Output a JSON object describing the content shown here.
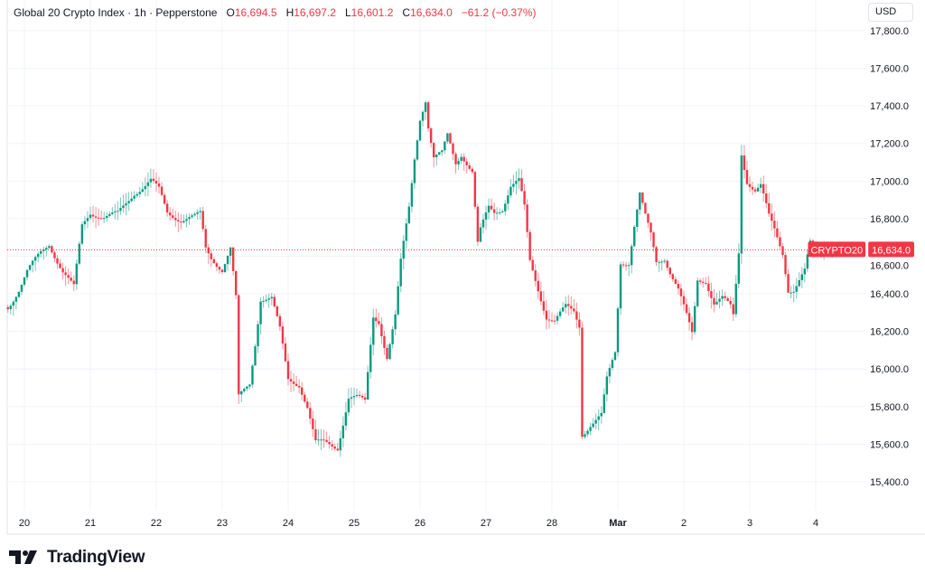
{
  "header": {
    "symbol_title": "Global 20 Crypto Index · 1h · Pepperstone",
    "open_label": "O",
    "open": "16,694.5",
    "high_label": "H",
    "high": "16,697.2",
    "low_label": "L",
    "low": "16,601.2",
    "close_label": "C",
    "close": "16,634.0",
    "change": "−61.2 (−0.37%)"
  },
  "currency_button": "USD",
  "price_tag": {
    "symbol": "CRYPTO20",
    "value": "16,634.0"
  },
  "logo_text": "TradingView",
  "colors": {
    "up": "#089981",
    "down": "#f23645",
    "grid": "#f0f3fa",
    "last_price": "#f23645"
  },
  "chart_data": {
    "type": "candlestick",
    "title": "Global 20 Crypto Index · 1h · Pepperstone",
    "interval": "1h",
    "ylim": [
      15300,
      17850
    ],
    "last_price": 16634.0,
    "grid": true,
    "y_ticks": [
      "17,800.0",
      "17,600.0",
      "17,400.0",
      "17,200.0",
      "17,000.0",
      "16,800.0",
      "16,600.0",
      "16,400.0",
      "16,200.0",
      "16,000.0",
      "15,800.0",
      "15,600.0",
      "15,400.0"
    ],
    "x_ticks": [
      "20",
      "21",
      "22",
      "23",
      "24",
      "25",
      "26",
      "27",
      "28",
      "Mar",
      "2",
      "3",
      "4"
    ],
    "approx_closes": [
      [
        "02-19 18:00",
        16328
      ],
      [
        "02-19 22:00",
        16424
      ],
      [
        "02-20 01:00",
        16520
      ],
      [
        "02-20 06:00",
        16617
      ],
      [
        "02-20 09:00",
        16665
      ],
      [
        "02-20 14:00",
        16520
      ],
      [
        "02-20 18:00",
        16434
      ],
      [
        "02-20 21:00",
        16761
      ],
      [
        "02-21 00:00",
        16833
      ],
      [
        "02-21 05:00",
        16809
      ],
      [
        "02-21 10:00",
        16824
      ],
      [
        "02-21 13:00",
        16881
      ],
      [
        "02-21 16:00",
        16939
      ],
      [
        "02-21 20:00",
        16977
      ],
      [
        "02-21 22:00",
        17002
      ],
      [
        "02-22 01:00",
        16953
      ],
      [
        "02-22 04:00",
        16833
      ],
      [
        "02-22 09:00",
        16795
      ],
      [
        "02-22 14:00",
        16809
      ],
      [
        "02-22 16:00",
        16824
      ],
      [
        "02-22 18:00",
        16641
      ],
      [
        "02-22 20:00",
        16593
      ],
      [
        "02-23 00:00",
        16530
      ],
      [
        "02-23 03:00",
        16641
      ],
      [
        "02-23 05:00",
        16376
      ],
      [
        "02-23 06:00",
        15847
      ],
      [
        "02-23 10:00",
        15920
      ],
      [
        "02-23 12:00",
        16136
      ],
      [
        "02-23 14:00",
        16376
      ],
      [
        "02-23 18:00",
        16376
      ],
      [
        "02-23 21:00",
        16208
      ],
      [
        "02-24 00:00",
        15943
      ],
      [
        "02-24 04:00",
        15920
      ],
      [
        "02-24 07:00",
        15799
      ],
      [
        "02-24 10:00",
        15607
      ],
      [
        "02-24 13:00",
        15607
      ],
      [
        "02-24 18:00",
        15583
      ],
      [
        "02-24 22:00",
        15847
      ],
      [
        "02-25 01:00",
        15847
      ],
      [
        "02-25 04:00",
        15823
      ],
      [
        "02-25 07:00",
        16280
      ],
      [
        "02-25 09:00",
        16256
      ],
      [
        "02-25 12:00",
        16064
      ],
      [
        "02-25 15:00",
        16280
      ],
      [
        "02-25 17:00",
        16569
      ],
      [
        "02-25 20:00",
        16857
      ],
      [
        "02-25 22:00",
        17122
      ],
      [
        "02-26 00:00",
        17338
      ],
      [
        "02-26 02:00",
        17434
      ],
      [
        "02-26 03:00",
        17290
      ],
      [
        "02-26 05:00",
        17122
      ],
      [
        "02-26 08:00",
        17146
      ],
      [
        "02-26 10:00",
        17242
      ],
      [
        "02-26 13:00",
        17098
      ],
      [
        "02-26 15:00",
        17146
      ],
      [
        "02-26 19:00",
        17050
      ],
      [
        "02-26 21:00",
        16665
      ],
      [
        "02-26 22:00",
        16737
      ],
      [
        "02-27 01:00",
        16857
      ],
      [
        "02-27 03:00",
        16833
      ],
      [
        "02-27 06:00",
        16857
      ],
      [
        "02-27 09:00",
        16977
      ],
      [
        "02-27 12:00",
        17002
      ],
      [
        "02-27 14:00",
        16857
      ],
      [
        "02-27 16:00",
        16569
      ],
      [
        "02-27 19:00",
        16424
      ],
      [
        "02-27 22:00",
        16280
      ],
      [
        "02-28 01:00",
        16256
      ],
      [
        "02-28 05:00",
        16328
      ],
      [
        "02-28 08:00",
        16304
      ],
      [
        "02-28 10:00",
        16232
      ],
      [
        "02-28 11:00",
        15655
      ],
      [
        "02-28 14:00",
        15703
      ],
      [
        "02-28 18:00",
        15751
      ],
      [
        "02-28 20:00",
        15943
      ],
      [
        "02-28 23:00",
        16088
      ],
      [
        "03-01 01:00",
        16569
      ],
      [
        "03-01 04:00",
        16569
      ],
      [
        "03-01 06:00",
        16761
      ],
      [
        "03-01 08:00",
        16929
      ],
      [
        "03-01 10:00",
        16809
      ],
      [
        "03-01 12:00",
        16713
      ],
      [
        "03-01 14:00",
        16569
      ],
      [
        "03-01 17:00",
        16593
      ],
      [
        "03-01 19:00",
        16520
      ],
      [
        "03-01 22:00",
        16424
      ],
      [
        "03-02 00:00",
        16328
      ],
      [
        "03-02 03:00",
        16184
      ],
      [
        "03-02 05:00",
        16472
      ],
      [
        "03-02 08:00",
        16472
      ],
      [
        "03-02 11:00",
        16352
      ],
      [
        "03-02 14:00",
        16376
      ],
      [
        "03-02 17:00",
        16328
      ],
      [
        "03-02 18:00",
        16280
      ],
      [
        "03-02 20:00",
        16617
      ],
      [
        "03-02 21:00",
        17146
      ],
      [
        "03-02 23:00",
        17002
      ],
      [
        "03-03 02:00",
        16953
      ],
      [
        "03-03 04:00",
        16977
      ],
      [
        "03-03 07:00",
        16809
      ],
      [
        "03-03 09:00",
        16737
      ],
      [
        "03-03 12:00",
        16617
      ],
      [
        "03-03 14:00",
        16424
      ],
      [
        "03-03 16:00",
        16424
      ],
      [
        "03-03 18:00",
        16472
      ],
      [
        "03-03 20:00",
        16520
      ],
      [
        "03-03 22:00",
        16665
      ],
      [
        "03-04 01:00",
        16617
      ],
      [
        "03-04 03:00",
        16665
      ],
      [
        "03-04 06:00",
        16634
      ]
    ]
  }
}
